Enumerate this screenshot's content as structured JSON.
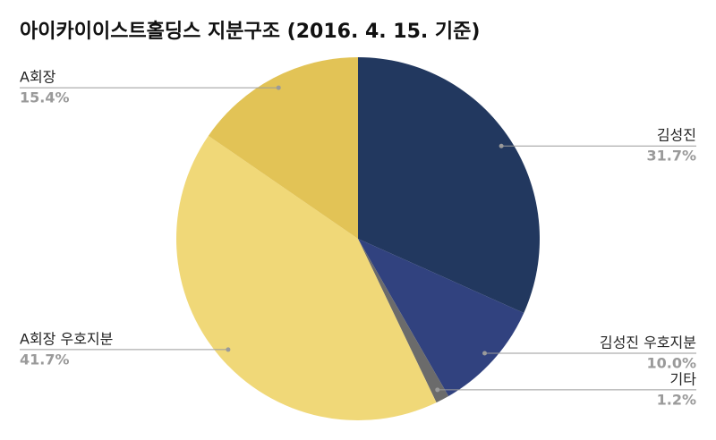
{
  "chart_data": {
    "type": "pie",
    "title": "아이카이이스트홀딩스 지분구조 (2016. 4. 15. 기준)",
    "categories": [
      "김성진",
      "김성진 우호지분",
      "기타",
      "A회장 우호지분",
      "A회장"
    ],
    "values": [
      31.7,
      10.0,
      1.2,
      41.7,
      15.4
    ],
    "value_labels": [
      "31.7%",
      "10.0%",
      "1.2%",
      "41.7%",
      "15.4%"
    ],
    "colors": [
      "#22385f",
      "#31427f",
      "#6b6b6b",
      "#f0d878",
      "#e2c356"
    ]
  }
}
